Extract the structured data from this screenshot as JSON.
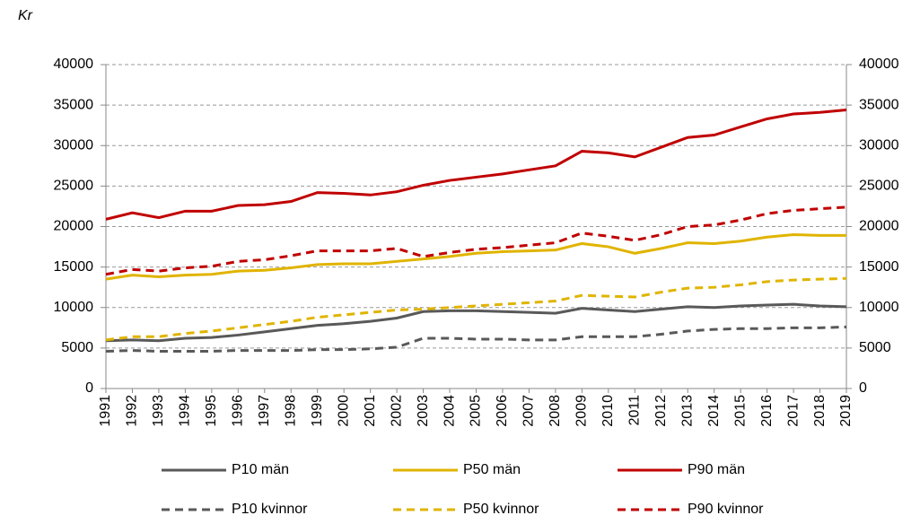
{
  "chart_data": {
    "type": "line",
    "unit_label": "Kr",
    "categories": [
      "1991",
      "1992",
      "1993",
      "1994",
      "1995",
      "1996",
      "1997",
      "1998",
      "1999",
      "2000",
      "2001",
      "2002",
      "2003",
      "2004",
      "2005",
      "2006",
      "2007",
      "2008",
      "2009",
      "2010",
      "2011",
      "2012",
      "2013",
      "2014",
      "2015",
      "2016",
      "2017",
      "2018",
      "2019"
    ],
    "ylim": [
      0,
      40000
    ],
    "yticks": [
      0,
      5000,
      10000,
      15000,
      20000,
      25000,
      30000,
      35000,
      40000
    ],
    "y2lim": [
      0,
      40000
    ],
    "y2ticks": [
      0,
      5000,
      10000,
      15000,
      20000,
      25000,
      30000,
      35000,
      40000
    ],
    "grid": true,
    "series": [
      {
        "name": "P10 män",
        "color": "#595959",
        "dashed": false,
        "values": [
          5900,
          6000,
          5900,
          6200,
          6300,
          6600,
          7000,
          7400,
          7800,
          8000,
          8300,
          8700,
          9500,
          9600,
          9600,
          9500,
          9400,
          9300,
          9900,
          9700,
          9500,
          9800,
          10100,
          10000,
          10200,
          10300,
          10400,
          10200,
          10100
        ]
      },
      {
        "name": "P50 män",
        "color": "#E0B400",
        "dashed": false,
        "values": [
          13500,
          14000,
          13800,
          14000,
          14100,
          14500,
          14600,
          14900,
          15300,
          15400,
          15400,
          15700,
          16000,
          16300,
          16700,
          16900,
          17000,
          17100,
          17900,
          17500,
          16700,
          17300,
          18000,
          17900,
          18200,
          18700,
          19000,
          18900,
          18900
        ]
      },
      {
        "name": "P90 män",
        "color": "#C00000",
        "dashed": false,
        "values": [
          20900,
          21700,
          21100,
          21900,
          21900,
          22600,
          22700,
          23100,
          24200,
          24100,
          23900,
          24300,
          25100,
          25700,
          26100,
          26500,
          27000,
          27500,
          29300,
          29100,
          28600,
          29800,
          31000,
          31300,
          32300,
          33300,
          33900,
          34100,
          34400
        ]
      },
      {
        "name": "P10 kvinnor",
        "color": "#595959",
        "dashed": true,
        "values": [
          4600,
          4700,
          4600,
          4600,
          4600,
          4700,
          4700,
          4700,
          4800,
          4800,
          4900,
          5100,
          6200,
          6200,
          6100,
          6100,
          6000,
          6000,
          6400,
          6400,
          6400,
          6700,
          7100,
          7300,
          7400,
          7400,
          7500,
          7500,
          7600
        ]
      },
      {
        "name": "P50 kvinnor",
        "color": "#E0B400",
        "dashed": true,
        "values": [
          6000,
          6400,
          6400,
          6800,
          7100,
          7500,
          7900,
          8300,
          8800,
          9100,
          9400,
          9700,
          9800,
          10000,
          10200,
          10400,
          10600,
          10800,
          11500,
          11400,
          11300,
          11900,
          12400,
          12500,
          12800,
          13200,
          13400,
          13500,
          13600
        ]
      },
      {
        "name": "P90 kvinnor",
        "color": "#C00000",
        "dashed": true,
        "values": [
          14100,
          14700,
          14500,
          14900,
          15100,
          15700,
          15900,
          16400,
          17000,
          17000,
          17000,
          17300,
          16300,
          16800,
          17200,
          17400,
          17700,
          18000,
          19200,
          18800,
          18300,
          19000,
          20000,
          20200,
          20800,
          21600,
          22000,
          22200,
          22400
        ]
      }
    ]
  }
}
